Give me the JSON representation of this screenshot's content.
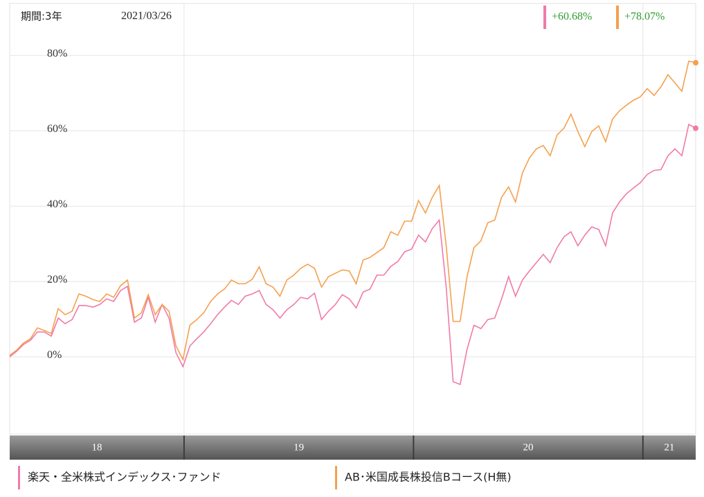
{
  "chart_data": {
    "type": "line",
    "period_label": "期間:3年",
    "date": "2021/03/26",
    "xlim": [
      2018.24,
      2021.23
    ],
    "xticks": [
      2019,
      2020,
      2021
    ],
    "xtick_band_labels": [
      "18",
      "19",
      "20",
      "21"
    ],
    "ylim": [
      -20.5,
      93.8
    ],
    "yticks": [
      {
        "value": 0,
        "label": "0%"
      },
      {
        "value": 20,
        "label": "20%"
      },
      {
        "value": 40,
        "label": "40%"
      },
      {
        "value": 60,
        "label": "60%"
      },
      {
        "value": 80,
        "label": "80%"
      }
    ],
    "grid": true,
    "series": [
      {
        "name": "楽天・全米株式インデックス･ファンド",
        "color": "#f07aa8",
        "end_label": "+60.68%",
        "values": [
          0.0,
          1.5,
          3.3,
          4.4,
          6.6,
          6.6,
          5.5,
          10.3,
          8.8,
          9.9,
          13.6,
          13.6,
          13.2,
          13.9,
          15.4,
          14.7,
          17.6,
          18.7,
          9.2,
          10.3,
          15.8,
          9.2,
          13.9,
          10.3,
          1.1,
          -2.6,
          2.9,
          4.8,
          6.6,
          8.8,
          11.2,
          13.2,
          15.0,
          13.9,
          16.1,
          16.7,
          17.6,
          13.9,
          12.5,
          10.3,
          12.5,
          13.9,
          15.8,
          15.4,
          16.9,
          9.9,
          12.1,
          13.9,
          16.5,
          15.4,
          13.0,
          17.2,
          18.0,
          21.7,
          21.7,
          24.0,
          25.3,
          27.9,
          28.6,
          32.3,
          30.5,
          34.1,
          36.3,
          18.5,
          -6.6,
          -7.3,
          2.0,
          8.4,
          7.5,
          9.9,
          10.3,
          15.4,
          21.3,
          16.1,
          20.4,
          22.8,
          25.0,
          27.2,
          25.0,
          29.0,
          31.9,
          33.2,
          29.5,
          32.3,
          34.5,
          33.8,
          29.5,
          38.2,
          41.1,
          43.3,
          44.8,
          46.2,
          48.4,
          49.5,
          49.7,
          53.4,
          55.2,
          53.4,
          61.7,
          60.68
        ]
      },
      {
        "name": "AB･米国成長株投信Bコース(H無)",
        "color": "#f5a04e",
        "end_label": "+78.07%",
        "values": [
          0.4,
          1.8,
          3.7,
          4.8,
          7.7,
          7.0,
          6.2,
          12.8,
          11.2,
          12.1,
          16.7,
          16.1,
          15.2,
          14.7,
          16.7,
          15.8,
          18.9,
          20.4,
          10.3,
          11.7,
          16.5,
          11.2,
          13.9,
          12.1,
          2.9,
          -0.7,
          8.4,
          9.9,
          11.7,
          14.7,
          16.7,
          18.0,
          20.4,
          19.4,
          19.4,
          20.6,
          23.9,
          19.4,
          18.5,
          16.1,
          20.4,
          21.7,
          23.5,
          24.6,
          23.5,
          18.5,
          21.3,
          22.2,
          23.1,
          22.8,
          19.4,
          25.7,
          26.4,
          27.7,
          29.0,
          33.2,
          32.3,
          36.0,
          36.0,
          41.5,
          38.2,
          42.4,
          45.5,
          29.5,
          9.4,
          9.4,
          21.3,
          29.0,
          30.8,
          35.6,
          36.3,
          42.4,
          45.1,
          41.1,
          48.8,
          52.8,
          55.2,
          56.1,
          53.4,
          58.9,
          60.7,
          64.4,
          59.8,
          55.8,
          59.8,
          61.3,
          57.1,
          63.1,
          65.3,
          66.8,
          68.1,
          69.0,
          71.2,
          69.4,
          71.7,
          74.9,
          72.7,
          70.5,
          78.5,
          78.07
        ]
      }
    ]
  }
}
